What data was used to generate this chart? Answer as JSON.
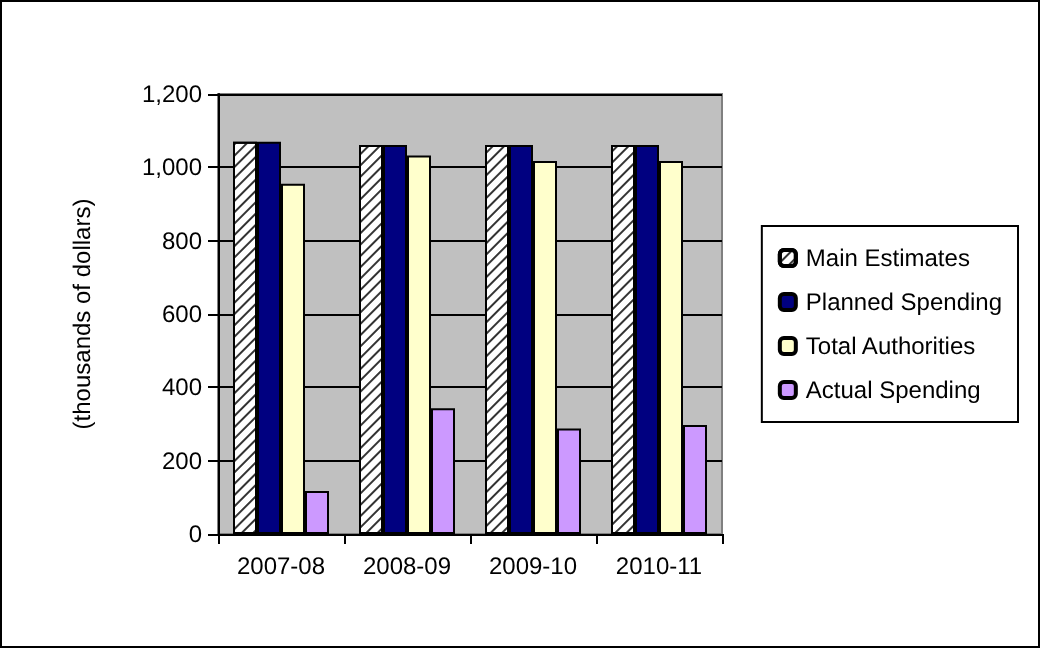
{
  "chart_data": {
    "type": "bar",
    "ylabel": "(thousands of dollars)",
    "categories": [
      "2007-08",
      "2008-09",
      "2009-10",
      "2010-11"
    ],
    "series": [
      {
        "name": "Main Estimates",
        "color": "#ffffff",
        "values": [
          1070,
          1061,
          1061,
          1061
        ]
      },
      {
        "name": "Planned Spending",
        "color": "#000080",
        "values": [
          1070,
          1061,
          1061,
          1061
        ]
      },
      {
        "name": "Total Authorities",
        "color": "#ffffcc",
        "values": [
          955,
          1032,
          1017,
          1017
        ]
      },
      {
        "name": "Actual Spending",
        "color": "#cc99ff",
        "values": [
          117,
          343,
          288,
          297
        ]
      }
    ],
    "ylim": [
      0,
      1200
    ],
    "yticks": [
      0,
      200,
      400,
      600,
      800,
      {
        "value": 1000,
        "label": "1,000"
      },
      {
        "value": 1200,
        "label": "1,200"
      }
    ],
    "grid": "y",
    "legend": "right"
  }
}
